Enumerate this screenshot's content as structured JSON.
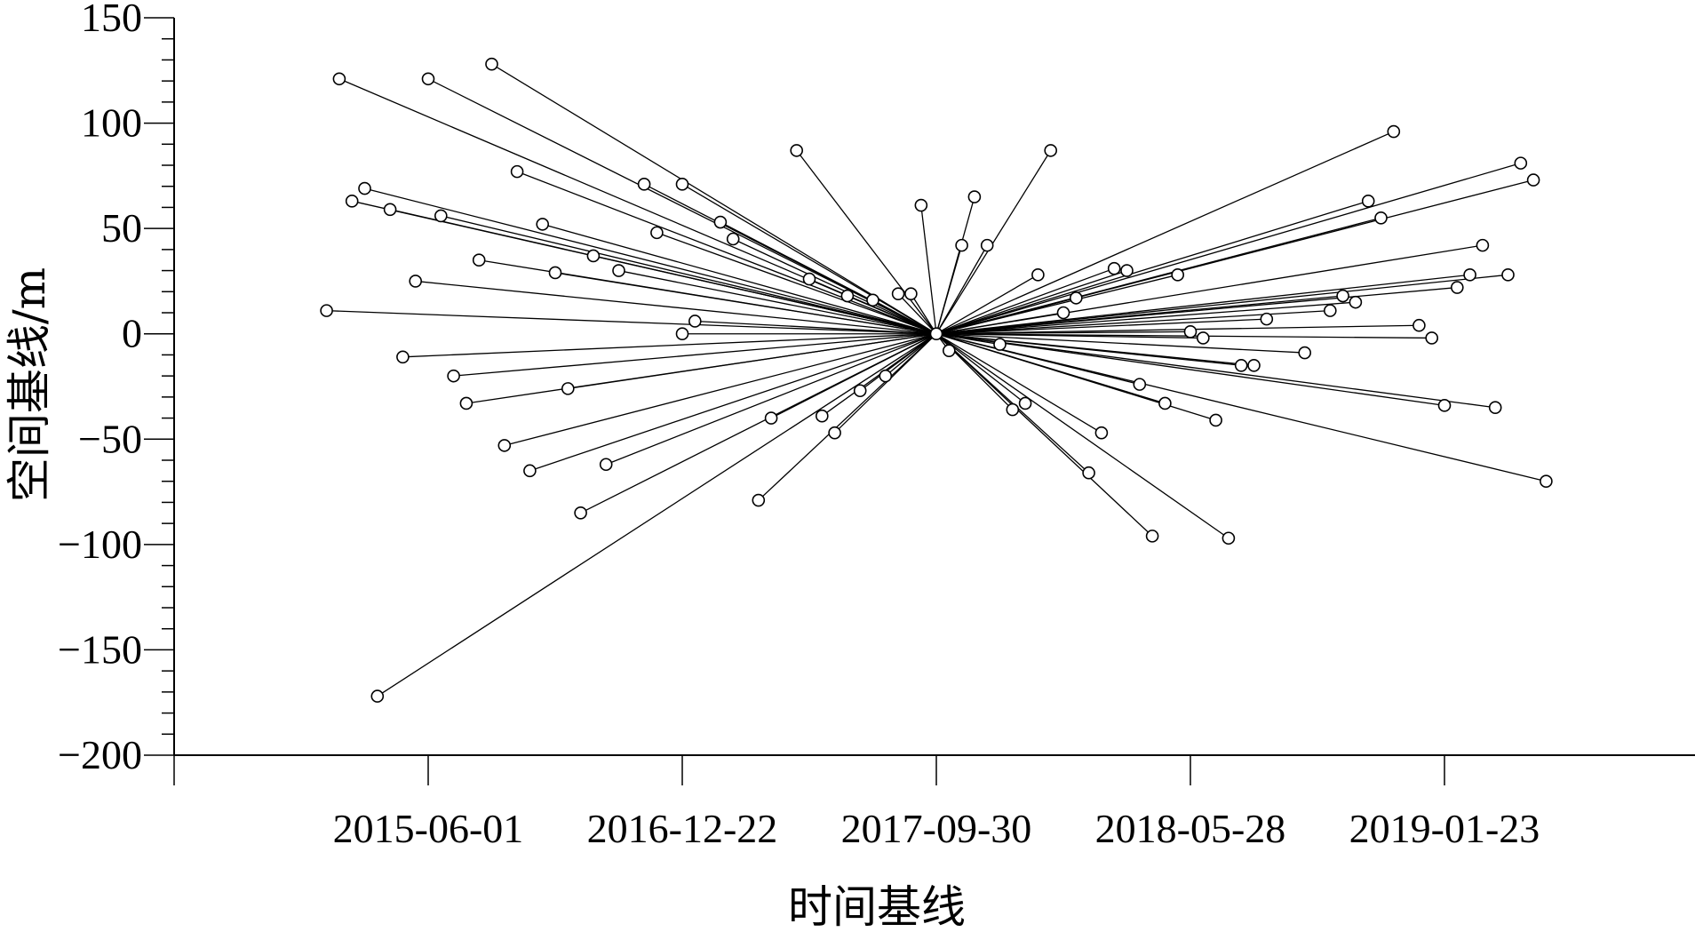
{
  "chart_data": {
    "type": "scatter",
    "subtype": "baseline-network",
    "xlabel": "时间基线",
    "ylabel": "空间基线/m",
    "x_tick_labels": [
      "2015-06-01",
      "2016-12-22",
      "2017-09-30",
      "2018-05-28",
      "2019-01-23"
    ],
    "y_ticks": [
      150,
      100,
      50,
      0,
      -50,
      -100,
      -150,
      -200
    ],
    "y_tick_labels": [
      "150",
      "100",
      "50",
      "0",
      "−50",
      "−100",
      "−150",
      "−200"
    ],
    "ylim": [
      -200,
      150
    ],
    "grid": false,
    "legend": "none",
    "colors": {
      "line": "#000000",
      "marker": "#000000",
      "background": "#ffffff"
    },
    "master": {
      "x": 3,
      "y": 0
    },
    "points": [
      {
        "x": 0.65,
        "y": 121
      },
      {
        "x": 1.0,
        "y": 121
      },
      {
        "x": 1.25,
        "y": 128
      },
      {
        "x": 0.75,
        "y": 69
      },
      {
        "x": 0.7,
        "y": 63
      },
      {
        "x": 0.85,
        "y": 59
      },
      {
        "x": 1.05,
        "y": 56
      },
      {
        "x": 1.35,
        "y": 77
      },
      {
        "x": 1.45,
        "y": 52
      },
      {
        "x": 1.2,
        "y": 35
      },
      {
        "x": 1.5,
        "y": 29
      },
      {
        "x": 1.65,
        "y": 37
      },
      {
        "x": 1.75,
        "y": 30
      },
      {
        "x": 0.95,
        "y": 25
      },
      {
        "x": 0.6,
        "y": 11
      },
      {
        "x": 1.85,
        "y": 71
      },
      {
        "x": 2.0,
        "y": 71
      },
      {
        "x": 2.15,
        "y": 53
      },
      {
        "x": 2.2,
        "y": 45
      },
      {
        "x": 1.9,
        "y": 48
      },
      {
        "x": 2.45,
        "y": 87
      },
      {
        "x": 2.5,
        "y": 26
      },
      {
        "x": 2.65,
        "y": 18
      },
      {
        "x": 2.75,
        "y": 16
      },
      {
        "x": 2.9,
        "y": 19
      },
      {
        "x": 2.85,
        "y": 19
      },
      {
        "x": 2.94,
        "y": 61
      },
      {
        "x": 3.1,
        "y": 42
      },
      {
        "x": 3.15,
        "y": 65
      },
      {
        "x": 3.2,
        "y": 42
      },
      {
        "x": 3.45,
        "y": 87
      },
      {
        "x": 2.0,
        "y": 0
      },
      {
        "x": 2.05,
        "y": 6
      },
      {
        "x": 0.9,
        "y": -11
      },
      {
        "x": 1.1,
        "y": -20
      },
      {
        "x": 1.15,
        "y": -33
      },
      {
        "x": 1.3,
        "y": -53
      },
      {
        "x": 1.4,
        "y": -65
      },
      {
        "x": 1.55,
        "y": -26
      },
      {
        "x": 1.6,
        "y": -85
      },
      {
        "x": 1.7,
        "y": -62
      },
      {
        "x": 2.3,
        "y": -79
      },
      {
        "x": 2.35,
        "y": -40
      },
      {
        "x": 2.55,
        "y": -39
      },
      {
        "x": 2.6,
        "y": -47
      },
      {
        "x": 2.7,
        "y": -27
      },
      {
        "x": 2.8,
        "y": -20
      },
      {
        "x": 0.8,
        "y": -172
      },
      {
        "x": 3.05,
        "y": -8
      },
      {
        "x": 3.25,
        "y": -5
      },
      {
        "x": 3.3,
        "y": -36
      },
      {
        "x": 3.35,
        "y": -33
      },
      {
        "x": 3.6,
        "y": -66
      },
      {
        "x": 3.65,
        "y": -47
      },
      {
        "x": 3.85,
        "y": -96
      },
      {
        "x": 4.15,
        "y": -97
      },
      {
        "x": 3.8,
        "y": -24
      },
      {
        "x": 3.9,
        "y": -33
      },
      {
        "x": 4.1,
        "y": -41
      },
      {
        "x": 4.2,
        "y": -15
      },
      {
        "x": 4.25,
        "y": -15
      },
      {
        "x": 4.45,
        "y": -9
      },
      {
        "x": 5.0,
        "y": -34
      },
      {
        "x": 5.2,
        "y": -35
      },
      {
        "x": 5.4,
        "y": -70
      },
      {
        "x": 3.4,
        "y": 28
      },
      {
        "x": 3.5,
        "y": 10
      },
      {
        "x": 3.55,
        "y": 17
      },
      {
        "x": 3.7,
        "y": 31
      },
      {
        "x": 3.75,
        "y": 30
      },
      {
        "x": 3.95,
        "y": 28
      },
      {
        "x": 4.0,
        "y": 1
      },
      {
        "x": 4.05,
        "y": -2
      },
      {
        "x": 4.3,
        "y": 7
      },
      {
        "x": 4.55,
        "y": 11
      },
      {
        "x": 4.6,
        "y": 18
      },
      {
        "x": 4.65,
        "y": 15
      },
      {
        "x": 4.7,
        "y": 63
      },
      {
        "x": 4.75,
        "y": 55
      },
      {
        "x": 4.8,
        "y": 96
      },
      {
        "x": 4.9,
        "y": 4
      },
      {
        "x": 4.95,
        "y": -2
      },
      {
        "x": 5.05,
        "y": 22
      },
      {
        "x": 5.1,
        "y": 28
      },
      {
        "x": 5.15,
        "y": 42
      },
      {
        "x": 5.25,
        "y": 28
      },
      {
        "x": 5.3,
        "y": 81
      },
      {
        "x": 5.35,
        "y": 73
      }
    ]
  }
}
